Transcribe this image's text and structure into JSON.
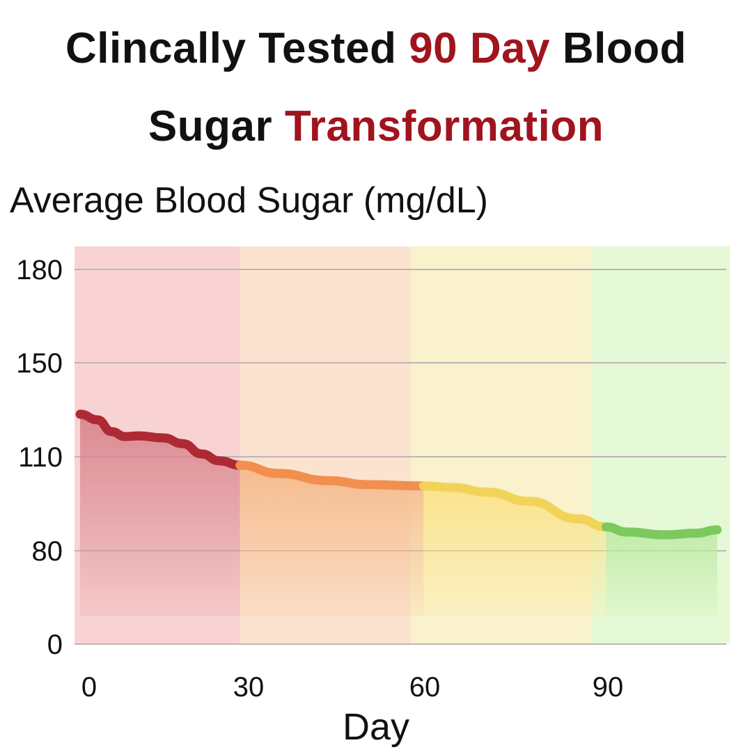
{
  "title": {
    "line1": [
      {
        "text": "Clincally Tested ",
        "accent": false
      },
      {
        "text": "90 Day",
        "accent": true
      },
      {
        "text": " Blood",
        "accent": false
      }
    ],
    "line2": [
      {
        "text": "Sugar ",
        "accent": false
      },
      {
        "text": "Transformation",
        "accent": true
      }
    ],
    "accent_color": "#a0141e"
  },
  "chart_data": {
    "type": "line",
    "title": "",
    "ylabel": "Average Blood Sugar (mg/dL)",
    "xlabel": "Day",
    "x_ticks": [
      0,
      30,
      60,
      90
    ],
    "y_ticks": [
      0,
      80,
      110,
      150,
      180
    ],
    "y_scale": "non-uniform (ticks equally spaced)",
    "grid": "horizontal",
    "legend": "none",
    "zones": [
      {
        "from": -3,
        "to": 28.4,
        "color": "#f9d3d3"
      },
      {
        "from": 28.4,
        "to": 57.6,
        "color": "#fce3cf"
      },
      {
        "from": 57.6,
        "to": 87.2,
        "color": "#f9f2cc"
      },
      {
        "from": 87.2,
        "to": 110,
        "color": "#e6f9d6"
      }
    ],
    "segments": [
      {
        "color": "#ad2a35",
        "fill": "#d9868e",
        "points": [
          [
            -1.7,
            128.1
          ],
          [
            1.6,
            125.7
          ],
          [
            4.2,
            120.7
          ],
          [
            6.8,
            118.6
          ],
          [
            9.4,
            118.9
          ],
          [
            14,
            118
          ],
          [
            17.6,
            115.6
          ],
          [
            21.2,
            111.2
          ],
          [
            24.5,
            108.7
          ],
          [
            28.4,
            107.3
          ]
        ]
      },
      {
        "color": "#f28f4e",
        "fill": "#f5b98a",
        "points": [
          [
            28.4,
            107.3
          ],
          [
            35.1,
            104.7
          ],
          [
            43.4,
            102.4
          ],
          [
            50.5,
            101.1
          ],
          [
            59.8,
            100.7
          ]
        ]
      },
      {
        "color": "#f2d35a",
        "fill": "#fbe38a",
        "points": [
          [
            59.8,
            100.7
          ],
          [
            64.6,
            100.2
          ],
          [
            70.3,
            98.7
          ],
          [
            77.1,
            95.8
          ],
          [
            85.1,
            90.2
          ],
          [
            89.7,
            87.6
          ]
        ]
      },
      {
        "color": "#7cc95e",
        "fill": "#bfeaa6",
        "points": [
          [
            89.7,
            87.6
          ],
          [
            93.1,
            86
          ],
          [
            99.4,
            85.1
          ],
          [
            104.5,
            85.6
          ],
          [
            107.9,
            86.7
          ]
        ]
      }
    ]
  }
}
